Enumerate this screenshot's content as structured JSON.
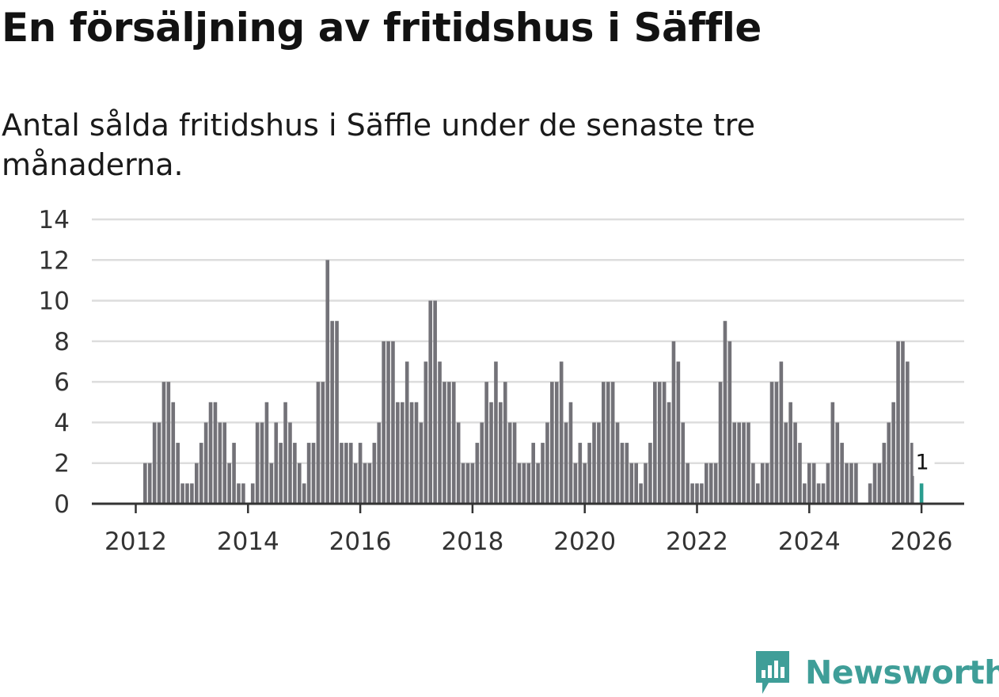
{
  "title": "En försäljning av fritidshus i Säffle",
  "subtitle": "Antal sålda fritidshus i Säffle under de senaste tre månaderna.",
  "brand": {
    "name": "Newsworthy",
    "color": "#3f9e98",
    "icon": "newsworthy-logo-icon"
  },
  "colors": {
    "bar": "#737278",
    "highlight": "#2a9d8f",
    "grid": "#dddddd",
    "axis": "#333333"
  },
  "chart_data": {
    "type": "bar",
    "title": "En försäljning av fritidshus i Säffle",
    "xlabel": "",
    "ylabel": "",
    "ylim": [
      0,
      14
    ],
    "yticks": [
      0,
      2,
      4,
      6,
      8,
      10,
      12,
      14
    ],
    "xticks": [
      "2012",
      "2014",
      "2016",
      "2018",
      "2020",
      "2022",
      "2024",
      "2026"
    ],
    "x_range": [
      "2011-01",
      "2026-09"
    ],
    "grid": true,
    "series": [
      {
        "name": "Antal sålda fritidshus",
        "start": "2011-01",
        "values": [
          0,
          0,
          0,
          0,
          0,
          0,
          0,
          0,
          0,
          0,
          0,
          0,
          0,
          0,
          2,
          2,
          4,
          4,
          6,
          6,
          5,
          3,
          1,
          1,
          1,
          2,
          3,
          4,
          5,
          5,
          4,
          4,
          2,
          3,
          1,
          1,
          0,
          1,
          4,
          4,
          5,
          2,
          4,
          3,
          5,
          4,
          3,
          2,
          1,
          3,
          3,
          6,
          6,
          12,
          9,
          9,
          3,
          3,
          3,
          2,
          3,
          2,
          2,
          3,
          4,
          8,
          8,
          8,
          5,
          5,
          7,
          5,
          5,
          4,
          7,
          10,
          10,
          7,
          6,
          6,
          6,
          4,
          2,
          2,
          2,
          3,
          4,
          6,
          5,
          7,
          5,
          6,
          4,
          4,
          2,
          2,
          2,
          3,
          2,
          3,
          4,
          6,
          6,
          7,
          4,
          5,
          2,
          3,
          2,
          3,
          4,
          4,
          6,
          6,
          6,
          4,
          3,
          3,
          2,
          2,
          1,
          2,
          3,
          6,
          6,
          6,
          5,
          8,
          7,
          4,
          2,
          1,
          1,
          1,
          2,
          2,
          2,
          6,
          9,
          8,
          4,
          4,
          4,
          4,
          2,
          1,
          2,
          2,
          6,
          6,
          7,
          4,
          5,
          4,
          3,
          1,
          2,
          2,
          1,
          1,
          2,
          5,
          4,
          3,
          2,
          2,
          2,
          0,
          0,
          1,
          2,
          2,
          3,
          4,
          5,
          8,
          8,
          7,
          3,
          0,
          1
        ]
      }
    ],
    "highlight": {
      "date": "2026-01",
      "value": 1,
      "label": "1"
    }
  }
}
